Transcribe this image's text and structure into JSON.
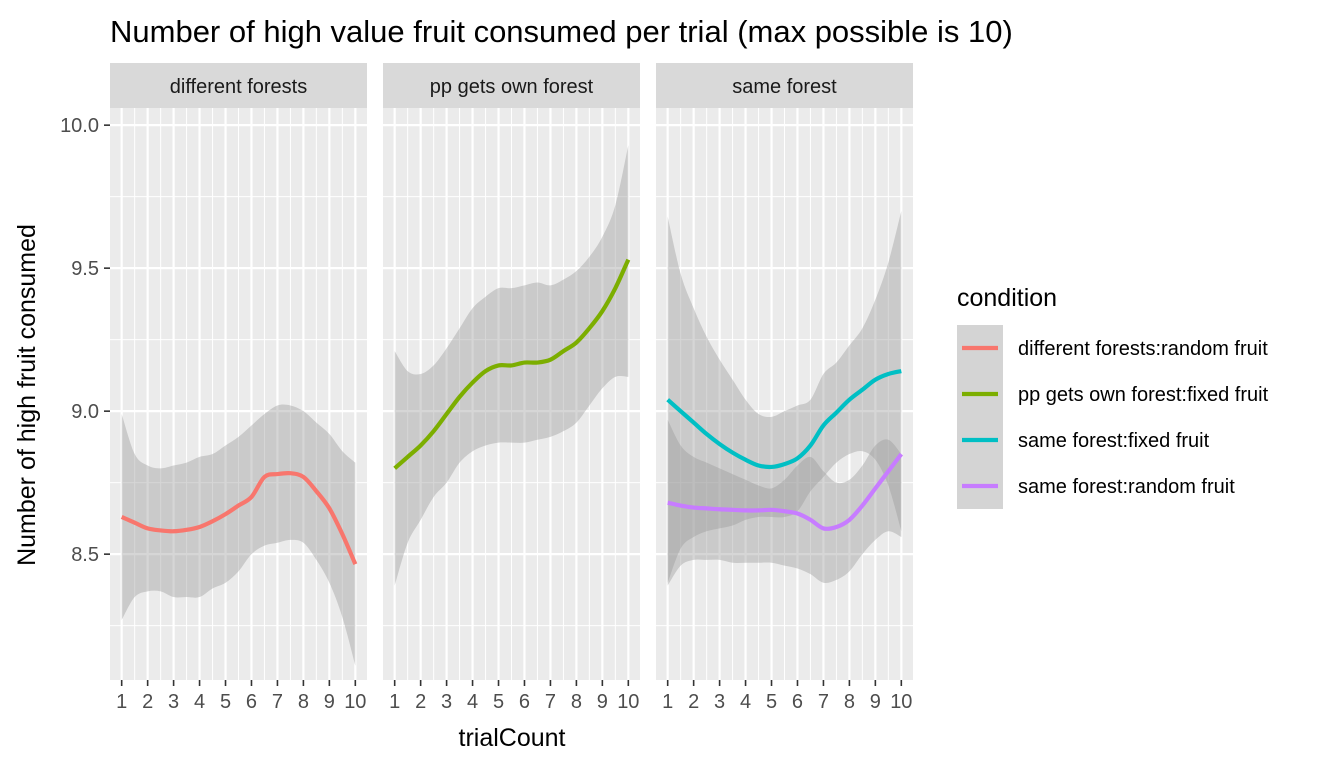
{
  "chart_data": {
    "type": "line",
    "title": "Number of high value fruit consumed per trial (max possible is 10)",
    "xlabel": "trialCount",
    "ylabel": "Number of high fruit consumed",
    "x_ticks": [
      1,
      2,
      3,
      4,
      5,
      6,
      7,
      8,
      9,
      10
    ],
    "y_ticks": [
      8.5,
      9.0,
      9.5,
      10.0
    ],
    "y_tick_labels": [
      "8.5",
      "9.0",
      "9.5",
      "10.0"
    ],
    "xlim": [
      0.55,
      10.45
    ],
    "ylim": [
      8.06,
      10.06
    ],
    "grid": true,
    "legend": {
      "title": "condition",
      "position": "right",
      "entries": [
        {
          "label": "different forests:random fruit",
          "color": "#F8766D"
        },
        {
          "label": "pp gets own forest:fixed fruit",
          "color": "#7CAE00"
        },
        {
          "label": "same forest:fixed fruit",
          "color": "#00BFC4"
        },
        {
          "label": "same forest:random fruit",
          "color": "#C77CFF"
        }
      ]
    },
    "panels": [
      {
        "strip": "different forests",
        "series": [
          {
            "name": "different forests:random fruit",
            "color": "#F8766D",
            "x": [
              1,
              1.5,
              2,
              2.5,
              3,
              3.5,
              4,
              4.5,
              5,
              5.5,
              6,
              6.5,
              7,
              7.5,
              8,
              8.5,
              9,
              9.5,
              10
            ],
            "y": [
              8.63,
              8.61,
              8.59,
              8.583,
              8.58,
              8.585,
              8.595,
              8.615,
              8.64,
              8.67,
              8.7,
              8.77,
              8.78,
              8.783,
              8.77,
              8.72,
              8.66,
              8.57,
              8.465
            ],
            "lower": [
              8.27,
              8.35,
              8.37,
              8.37,
              8.35,
              8.35,
              8.35,
              8.38,
              8.4,
              8.44,
              8.5,
              8.53,
              8.54,
              8.55,
              8.54,
              8.48,
              8.4,
              8.28,
              8.11
            ],
            "upper": [
              8.99,
              8.85,
              8.81,
              8.8,
              8.81,
              8.82,
              8.84,
              8.85,
              8.88,
              8.91,
              8.95,
              8.99,
              9.02,
              9.02,
              9.0,
              8.96,
              8.92,
              8.86,
              8.82
            ]
          }
        ]
      },
      {
        "strip": "pp gets own forest",
        "series": [
          {
            "name": "pp gets own forest:fixed fruit",
            "color": "#7CAE00",
            "x": [
              1,
              1.5,
              2,
              2.5,
              3,
              3.5,
              4,
              4.5,
              5,
              5.5,
              6,
              6.5,
              7,
              7.5,
              8,
              8.5,
              9,
              9.5,
              10
            ],
            "y": [
              8.8,
              8.84,
              8.88,
              8.93,
              8.99,
              9.05,
              9.1,
              9.14,
              9.16,
              9.16,
              9.17,
              9.17,
              9.18,
              9.21,
              9.24,
              9.29,
              9.35,
              9.43,
              9.53
            ],
            "lower": [
              8.39,
              8.54,
              8.62,
              8.7,
              8.75,
              8.82,
              8.86,
              8.88,
              8.89,
              8.89,
              8.89,
              8.9,
              8.91,
              8.93,
              8.96,
              9.02,
              9.08,
              9.12,
              9.12
            ],
            "upper": [
              9.21,
              9.14,
              9.13,
              9.16,
              9.22,
              9.29,
              9.36,
              9.4,
              9.43,
              9.43,
              9.44,
              9.45,
              9.44,
              9.46,
              9.49,
              9.54,
              9.61,
              9.72,
              9.93
            ]
          }
        ]
      },
      {
        "strip": "same forest",
        "series": [
          {
            "name": "same forest:fixed fruit",
            "color": "#00BFC4",
            "x": [
              1,
              1.5,
              2,
              2.5,
              3,
              3.5,
              4,
              4.5,
              5,
              5.5,
              6,
              6.5,
              7,
              7.5,
              8,
              8.5,
              9,
              9.5,
              10
            ],
            "y": [
              9.04,
              9.0,
              8.96,
              8.92,
              8.885,
              8.855,
              8.83,
              8.81,
              8.805,
              8.815,
              8.835,
              8.88,
              8.95,
              8.995,
              9.04,
              9.075,
              9.11,
              9.13,
              9.14
            ],
            "lower": [
              8.4,
              8.52,
              8.56,
              8.58,
              8.59,
              8.6,
              8.62,
              8.63,
              8.63,
              8.63,
              8.65,
              8.72,
              8.77,
              8.82,
              8.85,
              8.86,
              8.83,
              8.74,
              8.58
            ],
            "upper": [
              9.68,
              9.48,
              9.36,
              9.26,
              9.18,
              9.11,
              9.04,
              8.99,
              8.98,
              9.0,
              9.02,
              9.04,
              9.13,
              9.17,
              9.23,
              9.29,
              9.39,
              9.52,
              9.7
            ]
          },
          {
            "name": "same forest:random fruit",
            "color": "#C77CFF",
            "x": [
              1,
              1.5,
              2,
              2.5,
              3,
              3.5,
              4,
              4.5,
              5,
              5.5,
              6,
              6.5,
              7,
              7.5,
              8,
              8.5,
              9,
              9.5,
              10
            ],
            "y": [
              8.68,
              8.67,
              8.663,
              8.66,
              8.657,
              8.655,
              8.653,
              8.653,
              8.655,
              8.65,
              8.642,
              8.62,
              8.59,
              8.595,
              8.62,
              8.67,
              8.73,
              8.79,
              8.85
            ],
            "lower": [
              8.39,
              8.46,
              8.48,
              8.48,
              8.48,
              8.47,
              8.47,
              8.47,
              8.47,
              8.46,
              8.45,
              8.43,
              8.4,
              8.41,
              8.44,
              8.5,
              8.55,
              8.58,
              8.56
            ],
            "upper": [
              8.97,
              8.88,
              8.84,
              8.82,
              8.8,
              8.78,
              8.76,
              8.74,
              8.73,
              8.76,
              8.81,
              8.84,
              8.79,
              8.75,
              8.76,
              8.81,
              8.88,
              8.9,
              8.85
            ]
          }
        ]
      }
    ]
  }
}
